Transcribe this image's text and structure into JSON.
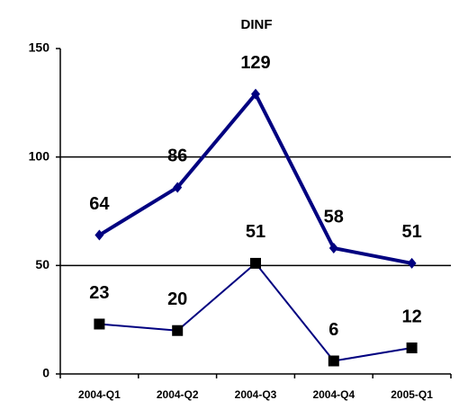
{
  "chart_data": {
    "type": "line",
    "title": "DINF",
    "categories": [
      "2004-Q1",
      "2004-Q2",
      "2004-Q3",
      "2004-Q4",
      "2005-Q1"
    ],
    "series": [
      {
        "color": "#000080",
        "line_width": 4,
        "marker": "diamond",
        "marker_color": "#000080",
        "values": [
          64,
          86,
          129,
          58,
          51
        ]
      },
      {
        "color": "#000080",
        "line_width": 2,
        "marker": "square",
        "marker_color": "#000000",
        "values": [
          23,
          20,
          51,
          6,
          12
        ]
      }
    ],
    "ylim": [
      0,
      150
    ],
    "yticks": [
      0,
      50,
      100,
      150
    ],
    "grid": true
  }
}
